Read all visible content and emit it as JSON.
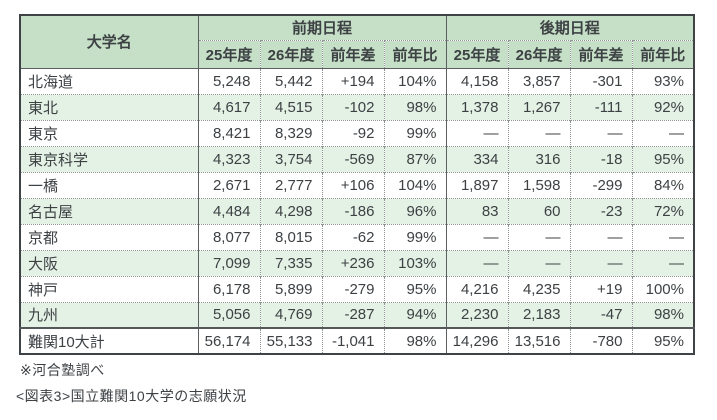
{
  "table": {
    "name_header": "大学名",
    "group_headers": [
      "前期日程",
      "後期日程"
    ],
    "sub_headers": [
      "25年度",
      "26年度",
      "前年差",
      "前年比"
    ],
    "rows": [
      {
        "name": "北海道",
        "values": [
          "5,248",
          "5,442",
          "+194",
          "104%",
          "4,158",
          "3,857",
          "-301",
          "93%"
        ],
        "shaded": false,
        "total": false
      },
      {
        "name": "東北",
        "values": [
          "4,617",
          "4,515",
          "-102",
          "98%",
          "1,378",
          "1,267",
          "-111",
          "92%"
        ],
        "shaded": true,
        "total": false
      },
      {
        "name": "東京",
        "values": [
          "8,421",
          "8,329",
          "-92",
          "99%",
          "—",
          "—",
          "—",
          "—"
        ],
        "shaded": false,
        "total": false
      },
      {
        "name": "東京科学",
        "values": [
          "4,323",
          "3,754",
          "-569",
          "87%",
          "334",
          "316",
          "-18",
          "95%"
        ],
        "shaded": true,
        "total": false
      },
      {
        "name": "一橋",
        "values": [
          "2,671",
          "2,777",
          "+106",
          "104%",
          "1,897",
          "1,598",
          "-299",
          "84%"
        ],
        "shaded": false,
        "total": false
      },
      {
        "name": "名古屋",
        "values": [
          "4,484",
          "4,298",
          "-186",
          "96%",
          "83",
          "60",
          "-23",
          "72%"
        ],
        "shaded": true,
        "total": false
      },
      {
        "name": "京都",
        "values": [
          "8,077",
          "8,015",
          "-62",
          "99%",
          "—",
          "—",
          "—",
          "—"
        ],
        "shaded": false,
        "total": false
      },
      {
        "name": "大阪",
        "values": [
          "7,099",
          "7,335",
          "+236",
          "103%",
          "—",
          "—",
          "—",
          "—"
        ],
        "shaded": true,
        "total": false
      },
      {
        "name": "神戸",
        "values": [
          "6,178",
          "5,899",
          "-279",
          "95%",
          "4,216",
          "4,235",
          "+19",
          "100%"
        ],
        "shaded": false,
        "total": false
      },
      {
        "name": "九州",
        "values": [
          "5,056",
          "4,769",
          "-287",
          "94%",
          "2,230",
          "2,183",
          "-47",
          "98%"
        ],
        "shaded": true,
        "total": false
      },
      {
        "name": "難関10大計",
        "values": [
          "56,174",
          "55,133",
          "-1,041",
          "98%",
          "14,296",
          "13,516",
          "-780",
          "95%"
        ],
        "shaded": false,
        "total": true
      }
    ]
  },
  "footer": {
    "source_note": "※河合塾調べ",
    "caption": "<図表3>国立難関10大学の志願状況"
  },
  "colors": {
    "header_green": "#c5e0c7",
    "shaded_row_green": "#e4f2e6",
    "text": "#3d4144",
    "solid_border": "#5c6062",
    "dotted_border": "#8d9390"
  }
}
